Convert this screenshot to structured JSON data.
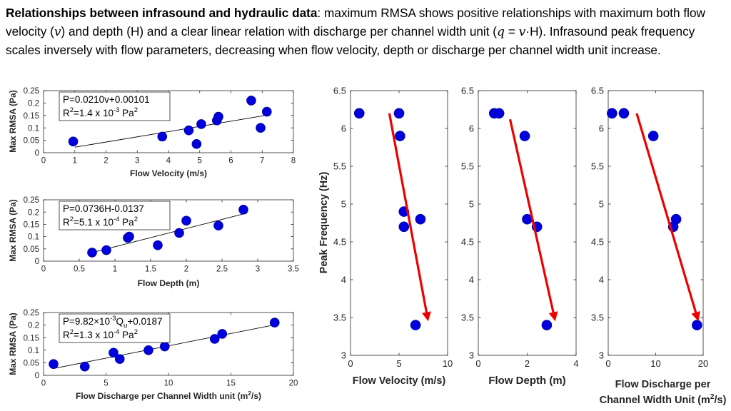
{
  "caption": {
    "title": "Relationships between infrasound and hydraulic data",
    "seg1": ": maximum RMSA shows positive relationships with maximum both flow velocity (",
    "sym_v": "v",
    "seg2": ") and depth (H) and a clear linear relation with discharge per channel width unit (",
    "sym_q": "q",
    "eq": " = ",
    "sym_v2": "v",
    "seg3": "·H). Infrasound peak frequency scales inversely with flow parameters, decreasing when flow velocity, depth or discharge per channel width unit increase."
  },
  "colors": {
    "marker": "#0000dd",
    "arrow": "#ee0000",
    "fit": "#000000"
  },
  "chart_data": [
    {
      "type": "scatter",
      "id": "rmsa_velocity",
      "xlabel": "Flow Velocity (m/s)",
      "ylabel": "Max RMSA (Pa)",
      "xlim": [
        0,
        8
      ],
      "ylim": [
        0,
        0.25
      ],
      "xticks": [
        0,
        1,
        2,
        3,
        4,
        5,
        6,
        7,
        8
      ],
      "xtick_labels": [
        "0",
        "1",
        "2",
        "3",
        "4",
        "5",
        "6",
        "7",
        "8"
      ],
      "yticks": [
        0,
        0.05,
        0.1,
        0.15,
        0.2,
        0.25
      ],
      "ytick_labels": [
        "0",
        "0.05",
        "0.1",
        "0.15",
        "0.2",
        "0.25"
      ],
      "annotation": {
        "eq_text": "P=0.0210v+0.00101",
        "r2_prefix": "R",
        "r2_sup": "2",
        "r2_mid": "=1.4 x 10",
        "r2_exp": "-3",
        "r2_unit": " Pa",
        "r2_unit_sup": "2"
      },
      "fit_line": {
        "x": [
          1.0,
          7.2
        ],
        "y": [
          0.022,
          0.152
        ]
      },
      "points": [
        [
          0.95,
          0.045
        ],
        [
          3.8,
          0.065
        ],
        [
          4.65,
          0.09
        ],
        [
          4.9,
          0.035
        ],
        [
          5.05,
          0.115
        ],
        [
          5.55,
          0.13
        ],
        [
          5.6,
          0.145
        ],
        [
          6.65,
          0.21
        ],
        [
          6.95,
          0.1
        ],
        [
          7.15,
          0.165
        ]
      ]
    },
    {
      "type": "scatter",
      "id": "rmsa_depth",
      "xlabel": "Flow Depth (m)",
      "ylabel": "Max RMSA (Pa)",
      "xlim": [
        0,
        3.5
      ],
      "ylim": [
        0,
        0.25
      ],
      "xticks": [
        0,
        0.5,
        1,
        1.5,
        2,
        2.5,
        3,
        3.5
      ],
      "xtick_labels": [
        "0",
        "0.5",
        "1",
        "1.5",
        "2",
        "2.5",
        "3",
        "3.5"
      ],
      "yticks": [
        0,
        0.05,
        0.1,
        0.15,
        0.2,
        0.25
      ],
      "ytick_labels": [
        "0",
        "0.05",
        "0.1",
        "0.15",
        "0.2",
        "0.25"
      ],
      "annotation": {
        "eq_text": "P=0.0736H-0.0137",
        "r2_prefix": "R",
        "r2_sup": "2",
        "r2_mid": "=5.1 x 10",
        "r2_exp": "-4",
        "r2_unit": " Pa",
        "r2_unit_sup": "2"
      },
      "fit_line": {
        "x": [
          0.68,
          2.85
        ],
        "y": [
          0.035,
          0.196
        ]
      },
      "points": [
        [
          0.68,
          0.035
        ],
        [
          0.88,
          0.045
        ],
        [
          1.18,
          0.095
        ],
        [
          1.2,
          0.1
        ],
        [
          1.6,
          0.065
        ],
        [
          1.9,
          0.115
        ],
        [
          2.0,
          0.165
        ],
        [
          2.45,
          0.145
        ],
        [
          2.8,
          0.21
        ]
      ]
    },
    {
      "type": "scatter",
      "id": "rmsa_discharge",
      "xlabel_text": "Flow Discharge per Channel Width unit (m",
      "xlabel_sup": "2",
      "xlabel_end": "/s)",
      "ylabel": "Max RMSA (Pa)",
      "xlim": [
        0,
        20
      ],
      "ylim": [
        0,
        0.25
      ],
      "xticks": [
        0,
        5,
        10,
        15,
        20
      ],
      "xtick_labels": [
        "0",
        "5",
        "10",
        "15",
        "20"
      ],
      "yticks": [
        0,
        0.05,
        0.1,
        0.15,
        0.2,
        0.25
      ],
      "ytick_labels": [
        "0",
        "0.05",
        "0.1",
        "0.15",
        "0.2",
        "0.25"
      ],
      "annotation": {
        "eq_pre": "P=9.82×10",
        "eq_exp": "-3",
        "eq_q": "Q",
        "eq_sub": "u",
        "eq_post": "+0.0187",
        "r2_prefix": "R",
        "r2_sup": "2",
        "r2_mid": "=1.3 x 10",
        "r2_exp": "-4",
        "r2_unit": " Pa",
        "r2_unit_sup": "2"
      },
      "fit_line": {
        "x": [
          0.8,
          18.6
        ],
        "y": [
          0.027,
          0.202
        ]
      },
      "points": [
        [
          0.8,
          0.045
        ],
        [
          3.3,
          0.035
        ],
        [
          5.6,
          0.09
        ],
        [
          6.1,
          0.065
        ],
        [
          8.4,
          0.1
        ],
        [
          9.7,
          0.115
        ],
        [
          13.7,
          0.145
        ],
        [
          14.3,
          0.165
        ],
        [
          18.5,
          0.21
        ]
      ]
    },
    {
      "type": "scatter",
      "id": "peak_velocity",
      "xlabel": "Flow Velocity (m/s)",
      "ylabel": "Peak Frequency (Hz)",
      "xlim": [
        0,
        10
      ],
      "ylim": [
        3,
        6.5
      ],
      "xticks": [
        0,
        5,
        10
      ],
      "xtick_labels": [
        "0",
        "5",
        "10"
      ],
      "yticks": [
        3,
        3.5,
        4,
        4.5,
        5,
        5.5,
        6,
        6.5
      ],
      "ytick_labels": [
        "3",
        "3.5",
        "4",
        "4.5",
        "5",
        "5.5",
        "6",
        "6.5"
      ],
      "points": [
        [
          0.9,
          6.2
        ],
        [
          5.0,
          6.2
        ],
        [
          5.1,
          5.9
        ],
        [
          5.5,
          4.9
        ],
        [
          5.5,
          4.7
        ],
        [
          7.2,
          4.8
        ],
        [
          6.7,
          3.4
        ]
      ],
      "arrow": {
        "from": [
          4.0,
          6.2
        ],
        "to": [
          8.0,
          3.45
        ]
      }
    },
    {
      "type": "scatter",
      "id": "peak_depth",
      "xlabel": "Flow Depth (m)",
      "xlim": [
        0,
        4
      ],
      "ylim": [
        3,
        6.5
      ],
      "xticks": [
        0,
        2,
        4
      ],
      "xtick_labels": [
        "0",
        "2",
        "4"
      ],
      "yticks": [
        3,
        3.5,
        4,
        4.5,
        5,
        5.5,
        6,
        6.5
      ],
      "ytick_labels": [
        "3",
        "3.5",
        "4",
        "4.5",
        "5",
        "5.5",
        "6",
        "6.5"
      ],
      "points": [
        [
          0.65,
          6.2
        ],
        [
          0.85,
          6.2
        ],
        [
          1.9,
          5.9
        ],
        [
          2.0,
          4.8
        ],
        [
          2.4,
          4.7
        ],
        [
          2.8,
          3.4
        ]
      ],
      "arrow": {
        "from": [
          1.3,
          6.12
        ],
        "to": [
          3.15,
          3.45
        ]
      }
    },
    {
      "type": "scatter",
      "id": "peak_discharge",
      "xlabel_line1": "Flow Discharge per",
      "xlabel_line2_text": "Channel Width Unit (m",
      "xlabel_line2_sup": "2",
      "xlabel_line2_end": "/s)",
      "xlim": [
        0,
        20
      ],
      "ylim": [
        3,
        6.5
      ],
      "xticks": [
        0,
        10,
        20
      ],
      "xtick_labels": [
        "0",
        "10",
        "20"
      ],
      "yticks": [
        3,
        3.5,
        4,
        4.5,
        5,
        5.5,
        6,
        6.5
      ],
      "ytick_labels": [
        "3",
        "3.5",
        "4",
        "4.5",
        "5",
        "5.5",
        "6",
        "6.5"
      ],
      "points": [
        [
          0.8,
          6.2
        ],
        [
          3.3,
          6.2
        ],
        [
          9.5,
          5.9
        ],
        [
          13.7,
          4.7
        ],
        [
          14.3,
          4.8
        ],
        [
          18.7,
          3.4
        ]
      ],
      "arrow": {
        "from": [
          6.0,
          6.2
        ],
        "to": [
          19.0,
          3.45
        ]
      }
    }
  ]
}
